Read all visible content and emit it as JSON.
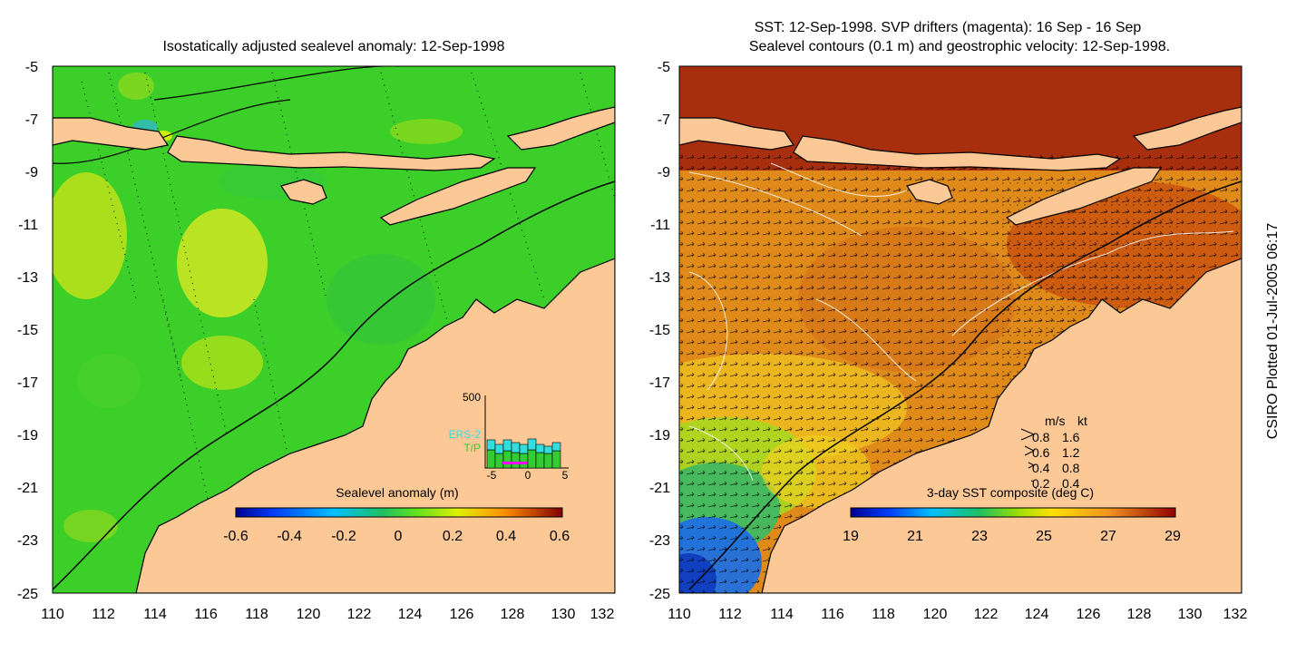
{
  "left_panel": {
    "title": "Isostatically adjusted sealevel anomaly: 12-Sep-1998",
    "colorbar": {
      "label": "Sealevel anomaly (m)",
      "ticks": [
        "-0.6",
        "-0.4",
        "-0.2",
        "0",
        "0.2",
        "0.4",
        "0.6"
      ]
    },
    "inset": {
      "ymax_label": "500",
      "series_labels": [
        "ERS-2",
        "T/P"
      ],
      "series_colors": [
        "#33dddd",
        "#33cc33"
      ],
      "x_ticks": [
        "-5",
        "0",
        "5"
      ]
    }
  },
  "right_panel": {
    "title_line1": "SST: 12-Sep-1998. SVP drifters (magenta): 16 Sep - 16 Sep",
    "title_line2": "Sealevel contours (0.1 m) and geostrophic velocity: 12-Sep-1998.",
    "colorbar": {
      "label": "3-day SST composite (deg C)",
      "ticks": [
        "19",
        "21",
        "23",
        "25",
        "27",
        "29"
      ]
    },
    "velocity_legend": {
      "header_ms": "m/s",
      "header_kt": "kt",
      "rows": [
        {
          "ms": "0.8",
          "kt": "1.6"
        },
        {
          "ms": "0.6",
          "kt": "1.2"
        },
        {
          "ms": "0.4",
          "kt": "0.8"
        },
        {
          "ms": "0.2",
          "kt": "0.4"
        }
      ]
    }
  },
  "axes": {
    "lat_ticks": [
      "-5",
      "-7",
      "-9",
      "-11",
      "-13",
      "-15",
      "-17",
      "-19",
      "-21",
      "-23",
      "-25"
    ],
    "lon_ticks": [
      "110",
      "112",
      "114",
      "116",
      "118",
      "120",
      "122",
      "124",
      "126",
      "128",
      "130",
      "132"
    ]
  },
  "credit": "CSIRO Plotted 01-Jul-2005 06:17",
  "colors": {
    "land": "#fbc896",
    "sla_base": "#3ccf2a",
    "sst_base": "#e08a1a"
  }
}
